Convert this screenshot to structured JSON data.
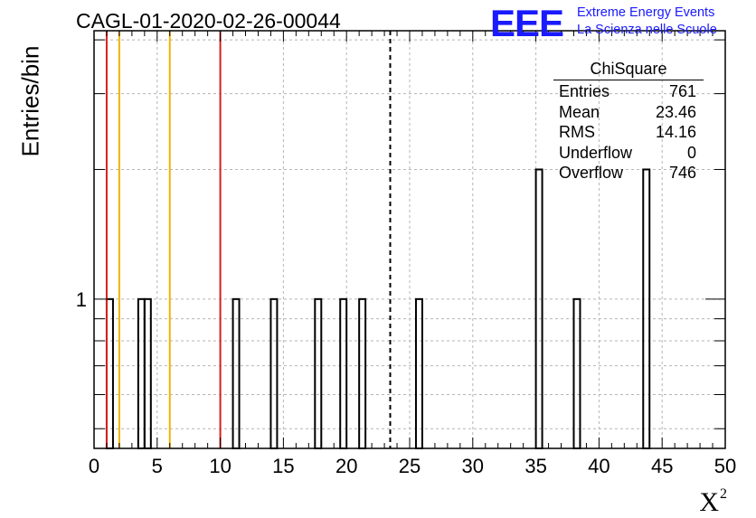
{
  "header": {
    "title": "CAGL-01-2020-02-26-00044"
  },
  "logo": {
    "mark": "EEE",
    "line1": "Extreme Energy Events",
    "line2": "La Scienza nelle Scuole",
    "color": "#1a1aff"
  },
  "chart_data": {
    "type": "bar",
    "title": "CAGL-01-2020-02-26-00044",
    "xlabel": "X²",
    "ylabel": "Entries/bin",
    "xlim": [
      0,
      50
    ],
    "yscale": "log",
    "ylim": [
      0.45,
      4.2
    ],
    "bin_width": 0.5,
    "grid": true,
    "x_ticks": [
      0,
      5,
      10,
      15,
      20,
      25,
      30,
      35,
      40,
      45,
      50
    ],
    "y_tick_labels": [
      {
        "value": 1,
        "label": "1"
      }
    ],
    "bins": [
      {
        "x": 1.0,
        "count": 1
      },
      {
        "x": 3.5,
        "count": 1
      },
      {
        "x": 4.0,
        "count": 1
      },
      {
        "x": 11.0,
        "count": 1
      },
      {
        "x": 14.0,
        "count": 1
      },
      {
        "x": 17.5,
        "count": 1
      },
      {
        "x": 19.5,
        "count": 1
      },
      {
        "x": 21.0,
        "count": 1
      },
      {
        "x": 25.5,
        "count": 1
      },
      {
        "x": 35.0,
        "count": 2
      },
      {
        "x": 38.0,
        "count": 1
      },
      {
        "x": 43.5,
        "count": 2
      }
    ],
    "vertical_lines": [
      {
        "x": 1,
        "color": "#d62020",
        "style": "solid"
      },
      {
        "x": 2,
        "color": "#f0b400",
        "style": "solid"
      },
      {
        "x": 6,
        "color": "#f0b400",
        "style": "solid"
      },
      {
        "x": 10,
        "color": "#d62020",
        "style": "solid"
      },
      {
        "x": 23.46,
        "color": "#000000",
        "style": "dashed"
      }
    ],
    "stats": {
      "title": "ChiSquare",
      "rows": [
        {
          "label": "Entries",
          "value": "761"
        },
        {
          "label": "Mean",
          "value": "23.46"
        },
        {
          "label": "RMS",
          "value": "14.16"
        },
        {
          "label": "Underflow",
          "value": "0"
        },
        {
          "label": "Overflow",
          "value": "746"
        }
      ]
    }
  }
}
